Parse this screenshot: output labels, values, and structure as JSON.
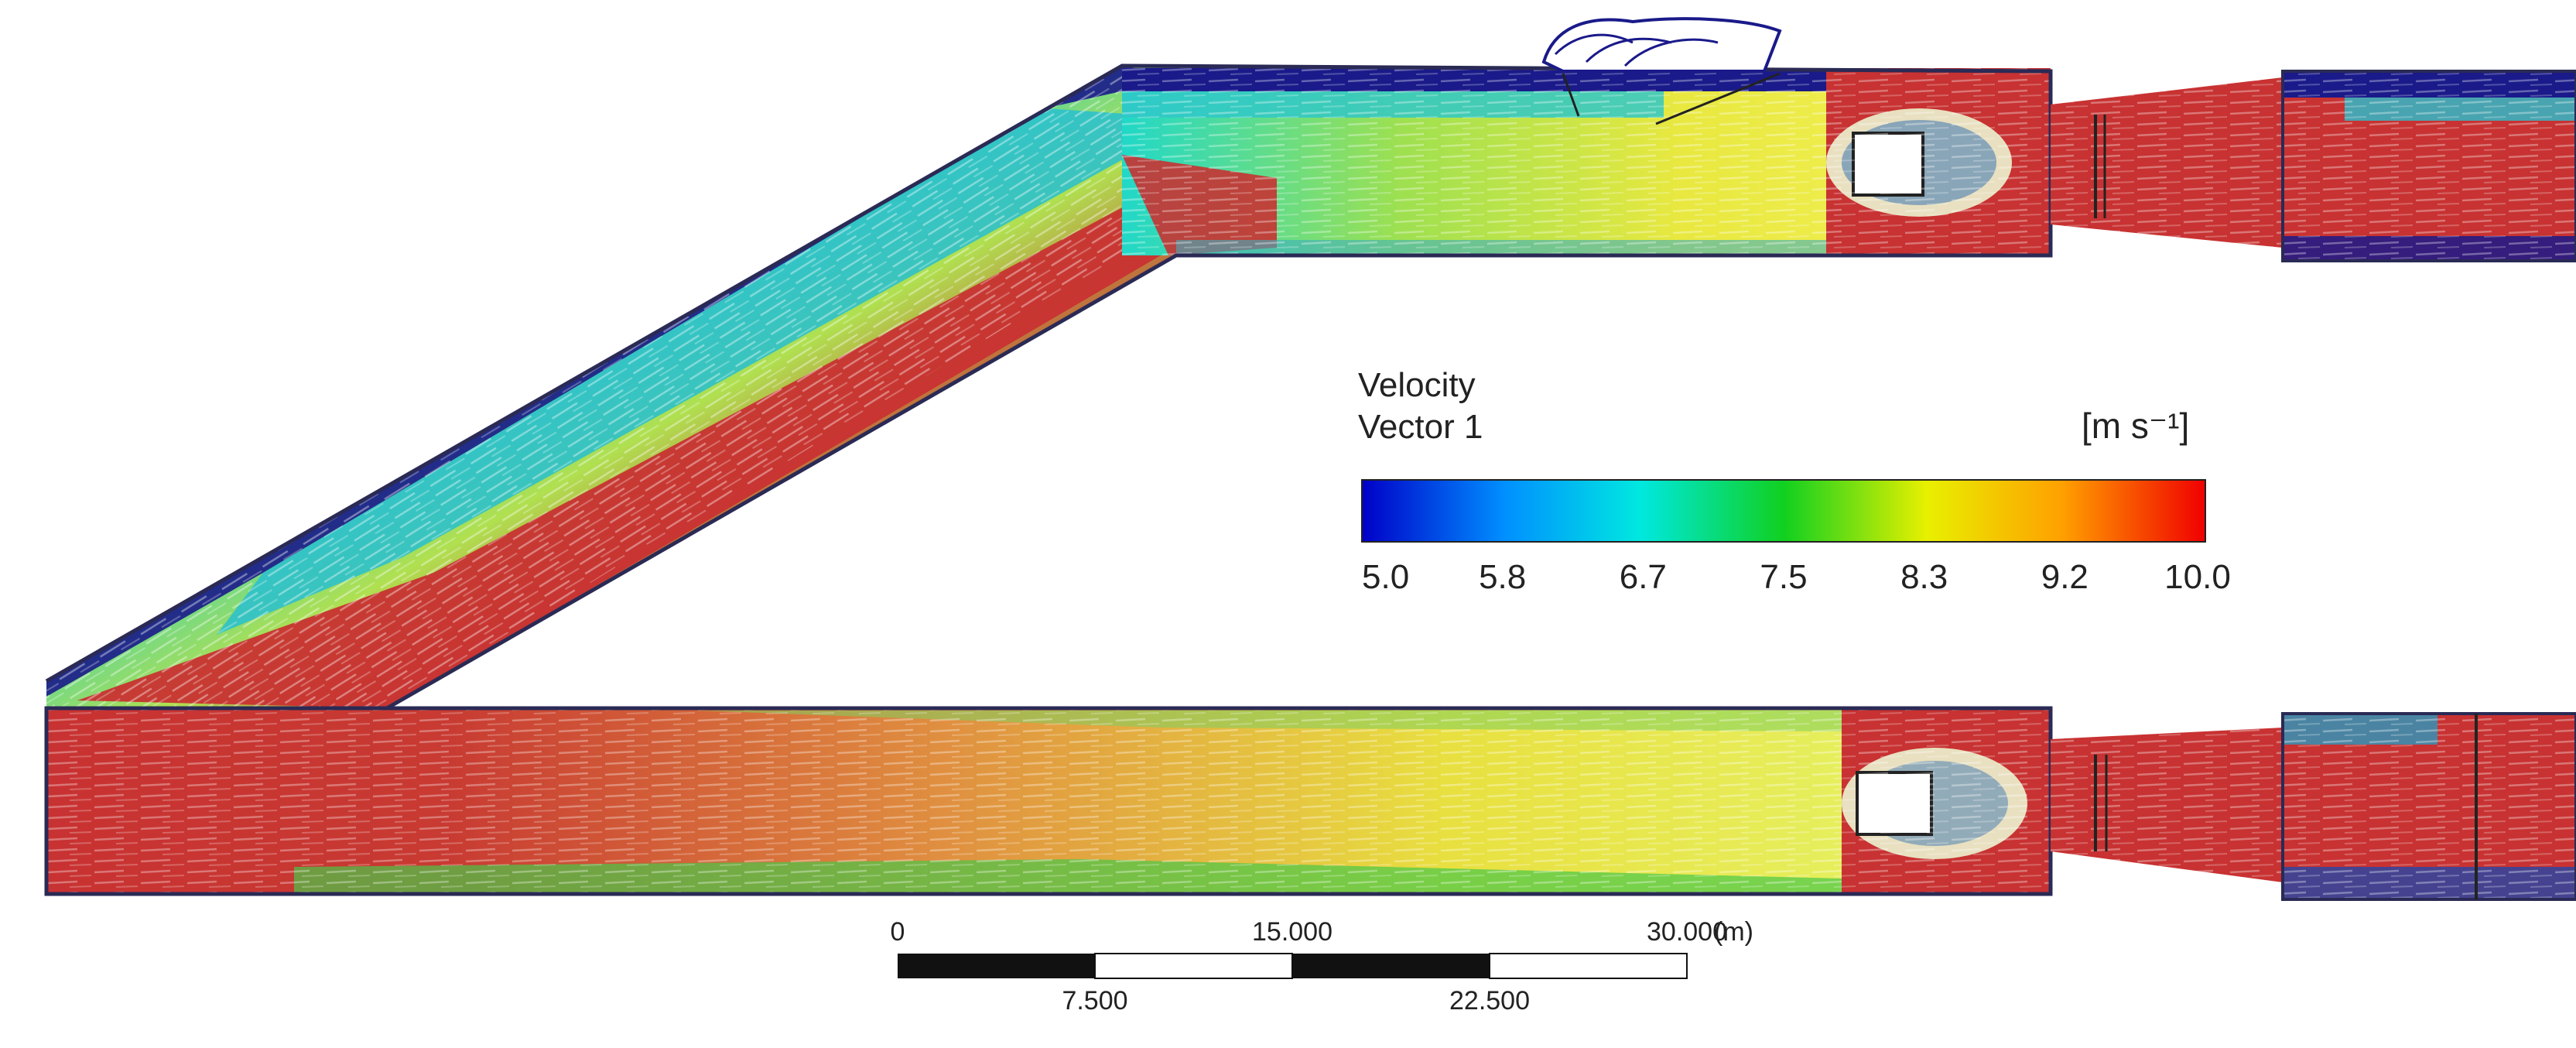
{
  "legend": {
    "title_line1": "Velocity",
    "title_line2": "Vector 1",
    "unit": "[m s⁻¹]",
    "ticks": [
      "5.0",
      "5.8",
      "6.7",
      "7.5",
      "8.3",
      "9.2",
      "10.0"
    ],
    "min": 5.0,
    "max": 10.0,
    "gradient_colors": [
      "#0000c8",
      "#00c8ff",
      "#00e0b0",
      "#10d020",
      "#e8f000",
      "#ffa000",
      "#f00000"
    ]
  },
  "scale_bar": {
    "top_labels": [
      "0",
      "15.000",
      "30.000"
    ],
    "unit": "(m)",
    "bottom_labels": [
      "7.500",
      "22.500"
    ]
  },
  "colors": {
    "outline": "#2a2a55",
    "low": "#1a1a8a",
    "mid_low": "#22c0d8",
    "mid": "#40c040",
    "mid_high": "#e8e640",
    "high": "#c83232"
  }
}
